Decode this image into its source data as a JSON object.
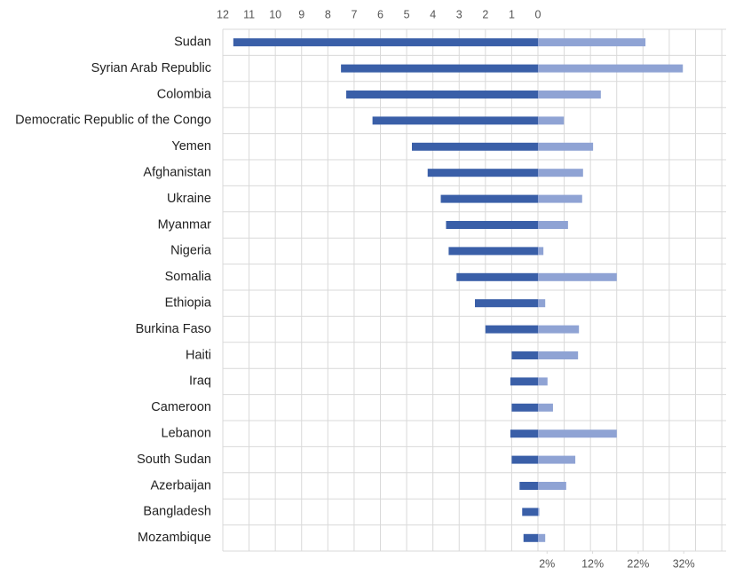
{
  "chart_data": {
    "type": "butterfly-bar",
    "categories": [
      "Sudan",
      "Syrian Arab Republic",
      "Colombia",
      "Democratic Republic of the Congo",
      "Yemen",
      "Afghanistan",
      "Ukraine",
      "Myanmar",
      "Nigeria",
      "Somalia",
      "Ethiopia",
      "Burkina Faso",
      "Haiti",
      "Iraq",
      "Cameroon",
      "Lebanon",
      "South Sudan",
      "Azerbaijan",
      "Bangladesh",
      "Mozambique"
    ],
    "series": [
      {
        "color": "#3a5fa8",
        "values": [
          11.6,
          7.5,
          7.3,
          6.3,
          4.8,
          4.2,
          3.7,
          3.5,
          3.4,
          3.1,
          2.4,
          2.0,
          1.0,
          1.05,
          1.0,
          1.05,
          1.0,
          0.7,
          0.6,
          0.55
        ]
      },
      {
        "color": "#8fa3d4",
        "axis": "x2",
        "values": [
          23.6,
          31.8,
          13.8,
          5.7,
          12.1,
          9.9,
          9.7,
          6.6,
          1.2,
          17.3,
          1.6,
          9.0,
          8.8,
          2.1,
          3.3,
          17.3,
          8.2,
          6.2,
          0.3,
          1.6
        ]
      }
    ],
    "xlim": [
      0,
      12
    ],
    "xticks": [
      12,
      11,
      10,
      9,
      8,
      7,
      6,
      5,
      4,
      3,
      2,
      1,
      0
    ],
    "x2lim": [
      0,
      41.3
    ],
    "x2ticks": [
      {
        "value": 2,
        "label": "2%"
      },
      {
        "value": 12,
        "label": "12%"
      },
      {
        "value": 22,
        "label": "22%"
      },
      {
        "value": 32,
        "label": "32%"
      }
    ],
    "grid": true
  }
}
